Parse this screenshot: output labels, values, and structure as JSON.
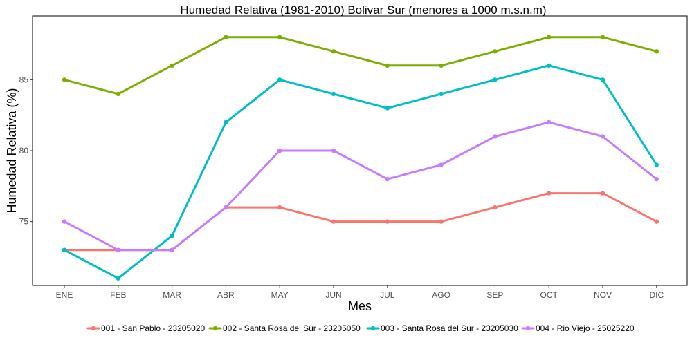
{
  "chart_data": {
    "type": "line",
    "title": "Humedad Relativa (1981-2010) Bolivar Sur (menores a 1000 m.s.n.m)",
    "xlabel": "Mes",
    "ylabel": "Humedad Relativa (%)",
    "categories": [
      "ENE",
      "FEB",
      "MAR",
      "ABR",
      "MAY",
      "JUN",
      "JUL",
      "AGO",
      "SEP",
      "OCT",
      "NOV",
      "DIC"
    ],
    "ylim": [
      70.5,
      89.5
    ],
    "yticks": [
      75,
      80,
      85
    ],
    "grid": false,
    "legend_position": "bottom",
    "series": [
      {
        "name": "001 - San Pablo - 23205020",
        "color": "#F8766D",
        "values": [
          73,
          73,
          73,
          76,
          76,
          75,
          75,
          75,
          76,
          77,
          77,
          75
        ]
      },
      {
        "name": "002 - Santa Rosa del Sur - 23205050",
        "color": "#7CAE00",
        "values": [
          85,
          84,
          86,
          88,
          88,
          87,
          86,
          86,
          87,
          88,
          88,
          87
        ]
      },
      {
        "name": "003 - Santa Rosa del Sur - 23205030",
        "color": "#00BFC4",
        "values": [
          73,
          71,
          74,
          82,
          85,
          84,
          83,
          84,
          85,
          86,
          85,
          79
        ]
      },
      {
        "name": "004 - Rio Viejo - 25025220",
        "color": "#C77CFF",
        "values": [
          75,
          73,
          73,
          76,
          80,
          80,
          78,
          79,
          81,
          82,
          81,
          78
        ]
      }
    ]
  }
}
